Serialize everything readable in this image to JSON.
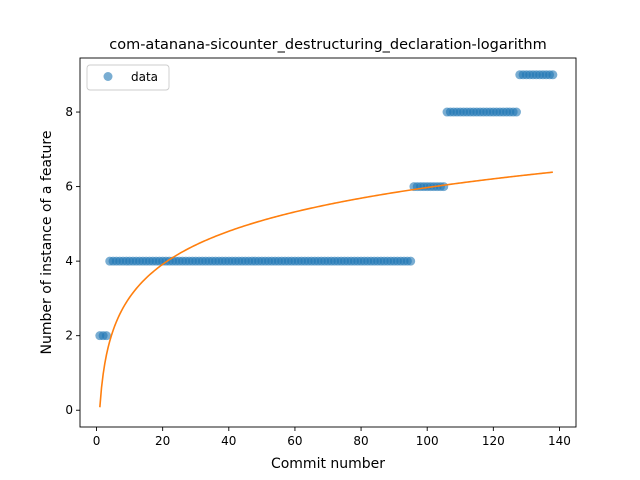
{
  "chart_data": {
    "type": "scatter",
    "title": "com-atanana-sicounter_destructuring_declaration-logarithm",
    "xlabel": "Commit number",
    "ylabel": "Number of instance of a feature",
    "xlim": [
      -5,
      145
    ],
    "ylim": [
      -0.45,
      9.45
    ],
    "xticks": [
      0,
      20,
      40,
      60,
      80,
      100,
      120,
      140
    ],
    "yticks": [
      0,
      2,
      4,
      6,
      8
    ],
    "grid": false,
    "legend_position": "top-left",
    "colors": {
      "data": "#1f77b4",
      "fit": "#ff7f0e"
    },
    "series": [
      {
        "name": "data",
        "kind": "scatter",
        "segments": [
          {
            "x_start": 1,
            "x_end": 3,
            "y": 2
          },
          {
            "x_start": 4,
            "x_end": 95,
            "y": 4
          },
          {
            "x_start": 96,
            "x_end": 105,
            "y": 6
          },
          {
            "x_start": 106,
            "x_end": 127,
            "y": 8
          },
          {
            "x_start": 128,
            "x_end": 138,
            "y": 9
          }
        ]
      },
      {
        "kind": "line",
        "model": "logarithmic",
        "formula": "y = 1.28 * ln(x) + 0.08",
        "coefficients": {
          "a": 1.28,
          "b": 0.08
        },
        "x_range": [
          1,
          138
        ]
      }
    ]
  }
}
